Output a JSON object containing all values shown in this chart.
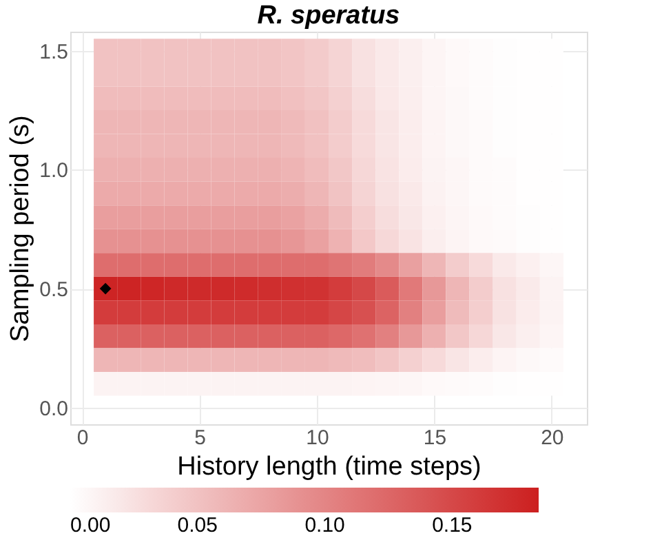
{
  "chart_data": {
    "type": "heatmap",
    "title": "R. speratus",
    "xlabel": "History length (time steps)",
    "ylabel": "Sampling period (s)",
    "x": [
      1,
      2,
      3,
      4,
      5,
      6,
      7,
      8,
      9,
      10,
      11,
      12,
      13,
      14,
      15,
      16,
      17,
      18,
      19,
      20
    ],
    "y": [
      1.5,
      1.4,
      1.3,
      1.2,
      1.1,
      1.0,
      0.9,
      0.8,
      0.7,
      0.6,
      0.5,
      0.4,
      0.3,
      0.2,
      0.1
    ],
    "cells": [
      [
        0.05,
        0.05,
        0.05,
        0.05,
        0.05,
        0.05,
        0.05,
        0.05,
        0.048,
        0.043,
        0.035,
        0.025,
        0.018,
        0.013,
        0.008,
        0.005,
        0.003,
        0.002,
        0.001,
        0.001
      ],
      [
        0.05,
        0.05,
        0.05,
        0.05,
        0.05,
        0.05,
        0.05,
        0.05,
        0.048,
        0.043,
        0.035,
        0.025,
        0.018,
        0.013,
        0.008,
        0.005,
        0.003,
        0.002,
        0.001,
        0.001
      ],
      [
        0.055,
        0.055,
        0.055,
        0.055,
        0.055,
        0.055,
        0.055,
        0.055,
        0.052,
        0.047,
        0.039,
        0.028,
        0.019,
        0.014,
        0.008,
        0.006,
        0.003,
        0.002,
        0.001,
        0.001
      ],
      [
        0.06,
        0.06,
        0.06,
        0.06,
        0.06,
        0.06,
        0.06,
        0.06,
        0.057,
        0.051,
        0.042,
        0.03,
        0.021,
        0.015,
        0.009,
        0.006,
        0.004,
        0.002,
        0.001,
        0.001
      ],
      [
        0.06,
        0.06,
        0.06,
        0.06,
        0.06,
        0.06,
        0.06,
        0.06,
        0.057,
        0.051,
        0.042,
        0.03,
        0.021,
        0.015,
        0.009,
        0.006,
        0.004,
        0.002,
        0.001,
        0.001
      ],
      [
        0.065,
        0.065,
        0.065,
        0.065,
        0.065,
        0.065,
        0.065,
        0.065,
        0.062,
        0.055,
        0.046,
        0.033,
        0.023,
        0.016,
        0.01,
        0.007,
        0.004,
        0.003,
        0.001,
        0.001
      ],
      [
        0.07,
        0.07,
        0.07,
        0.07,
        0.07,
        0.07,
        0.07,
        0.07,
        0.067,
        0.06,
        0.049,
        0.035,
        0.025,
        0.018,
        0.011,
        0.007,
        0.004,
        0.003,
        0.001,
        0.001
      ],
      [
        0.08,
        0.08,
        0.08,
        0.08,
        0.08,
        0.08,
        0.08,
        0.08,
        0.076,
        0.068,
        0.056,
        0.04,
        0.028,
        0.02,
        0.012,
        0.008,
        0.005,
        0.003,
        0.002,
        0.001
      ],
      [
        0.09,
        0.09,
        0.09,
        0.09,
        0.09,
        0.09,
        0.09,
        0.09,
        0.086,
        0.077,
        0.063,
        0.045,
        0.032,
        0.023,
        0.014,
        0.009,
        0.005,
        0.004,
        0.002,
        0.001
      ],
      [
        0.12,
        0.12,
        0.12,
        0.12,
        0.12,
        0.12,
        0.12,
        0.12,
        0.12,
        0.12,
        0.114,
        0.108,
        0.096,
        0.078,
        0.06,
        0.042,
        0.03,
        0.018,
        0.012,
        0.007
      ],
      [
        0.18,
        0.18,
        0.178,
        0.176,
        0.175,
        0.175,
        0.174,
        0.172,
        0.17,
        0.168,
        0.16,
        0.15,
        0.135,
        0.11,
        0.085,
        0.06,
        0.042,
        0.025,
        0.017,
        0.01
      ],
      [
        0.16,
        0.16,
        0.16,
        0.16,
        0.16,
        0.16,
        0.16,
        0.16,
        0.16,
        0.16,
        0.152,
        0.144,
        0.128,
        0.104,
        0.08,
        0.056,
        0.04,
        0.024,
        0.016,
        0.01
      ],
      [
        0.13,
        0.13,
        0.13,
        0.13,
        0.13,
        0.13,
        0.13,
        0.13,
        0.13,
        0.13,
        0.124,
        0.117,
        0.104,
        0.085,
        0.065,
        0.046,
        0.033,
        0.02,
        0.013,
        0.008
      ],
      [
        0.06,
        0.06,
        0.06,
        0.06,
        0.06,
        0.06,
        0.06,
        0.06,
        0.06,
        0.06,
        0.057,
        0.054,
        0.048,
        0.039,
        0.03,
        0.021,
        0.015,
        0.009,
        0.006,
        0.004
      ],
      [
        0.01,
        0.01,
        0.01,
        0.01,
        0.01,
        0.01,
        0.01,
        0.01,
        0.01,
        0.01,
        0.01,
        0.009,
        0.008,
        0.007,
        0.005,
        0.004,
        0.003,
        0.002,
        0.001,
        0.001
      ]
    ],
    "colors": [
      "#ffffff",
      "#cc1f1f"
    ],
    "clim": [
      0,
      0.184
    ],
    "cticks": [
      {
        "value": 0,
        "label": "0.00"
      },
      {
        "value": 0.05,
        "label": "0.05"
      },
      {
        "value": 0.1,
        "label": "0.10"
      },
      {
        "value": 0.15,
        "label": "0.15"
      }
    ],
    "xlim": [
      -0.5,
      21.5
    ],
    "xticks": [
      0,
      5,
      10,
      15,
      20
    ],
    "ylim": [
      -0.07,
      1.58
    ],
    "yticks": [
      {
        "value": 0,
        "label": "0.0"
      },
      {
        "value": 0.5,
        "label": "0.5"
      },
      {
        "value": 1,
        "label": "1.0"
      },
      {
        "value": 1.5,
        "label": "1.5"
      }
    ],
    "grid": true,
    "series": [
      {
        "type": "scatter",
        "x": [
          1
        ],
        "values": [
          0.5
        ],
        "color": "#000000",
        "marker": "diamond"
      }
    ]
  }
}
